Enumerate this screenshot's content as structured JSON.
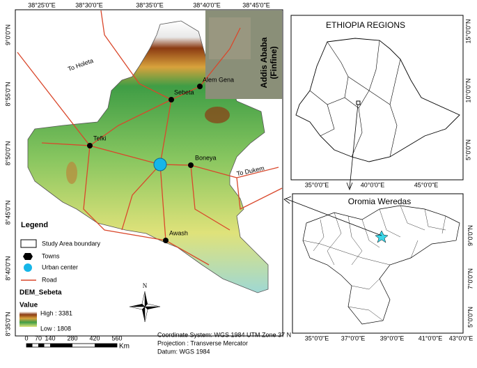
{
  "main_map": {
    "top_labels": [
      "38°25'0\"E",
      "38°30'0\"E",
      "38°35'0\"E",
      "38°40'0\"E",
      "38°45'0\"E"
    ],
    "left_labels": [
      "9°0'0\"N",
      "8°55'0\"N",
      "8°50'0\"N",
      "8°45'0\"N",
      "8°40'0\"N",
      "8°35'0\"N"
    ],
    "places": [
      "To Holeta",
      "Alem Gena",
      "Sebeta",
      "Tefki",
      "Boneya",
      "To Dukem",
      "Awash"
    ],
    "inset_label": [
      "Addis Ababa",
      "(Finfine)"
    ]
  },
  "legend": {
    "title": "Legend",
    "items": [
      "Study Area boundary",
      "Towns",
      "Urban center",
      "Road"
    ],
    "dem_title": "DEM_Sebeta",
    "value": "Value",
    "high": "High : 3381",
    "low": "Low : 1808"
  },
  "scale_bar": {
    "labels": [
      "0",
      "70",
      "140",
      "280",
      "420",
      "560"
    ],
    "unit": "Km"
  },
  "north_arrow": "N",
  "projection": [
    "Coordinate System: WGS 1984 UTM Zone 37 N",
    "Projection : Transverse Mercator",
    "Datum: WGS 1984"
  ],
  "ethiopia_panel": {
    "title": "ETHIOPIA  REGIONS",
    "x_labels": [
      "35°0'0\"E",
      "40°0'0\"E",
      "45°0'0\"E"
    ],
    "y_labels": [
      "15°0'0\"N",
      "10°0'0\"N",
      "5°0'0\"N"
    ]
  },
  "oromia_panel": {
    "title": "Oromia Weredas",
    "x_labels": [
      "35°0'0\"E",
      "37°0'0\"E",
      "39°0'0\"E",
      "41°0'0\"E",
      "43°0'0\"E"
    ],
    "y_labels": [
      "9°0'0\"N",
      "7°0'0\"N",
      "5°0'0\"N"
    ]
  }
}
